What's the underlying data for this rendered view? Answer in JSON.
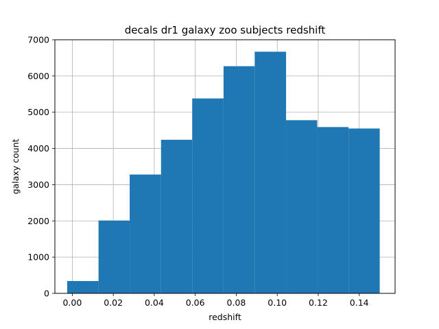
{
  "chart_data": {
    "type": "bar",
    "title": "decals dr1 galaxy zoo subjects redshift",
    "xlabel": "redshift",
    "ylabel": "galaxy count",
    "xlim": [
      -0.0085,
      0.1575
    ],
    "ylim": [
      0,
      7000
    ],
    "grid": true,
    "bar_color": "#1f77b4",
    "bin_edges": [
      -0.0025,
      0.0128,
      0.028,
      0.0433,
      0.0585,
      0.0738,
      0.089,
      0.1043,
      0.1195,
      0.1348,
      0.15
    ],
    "values": [
      340,
      2010,
      3280,
      4240,
      5380,
      6270,
      6670,
      4780,
      4590,
      4550
    ],
    "x_ticks": [
      0.0,
      0.02,
      0.04,
      0.06,
      0.08,
      0.1,
      0.12,
      0.14
    ],
    "x_tick_labels": [
      "0.00",
      "0.02",
      "0.04",
      "0.06",
      "0.08",
      "0.10",
      "0.12",
      "0.14"
    ],
    "y_ticks": [
      0,
      1000,
      2000,
      3000,
      4000,
      5000,
      6000,
      7000
    ],
    "y_tick_labels": [
      "0",
      "1000",
      "2000",
      "3000",
      "4000",
      "5000",
      "6000",
      "7000"
    ]
  }
}
